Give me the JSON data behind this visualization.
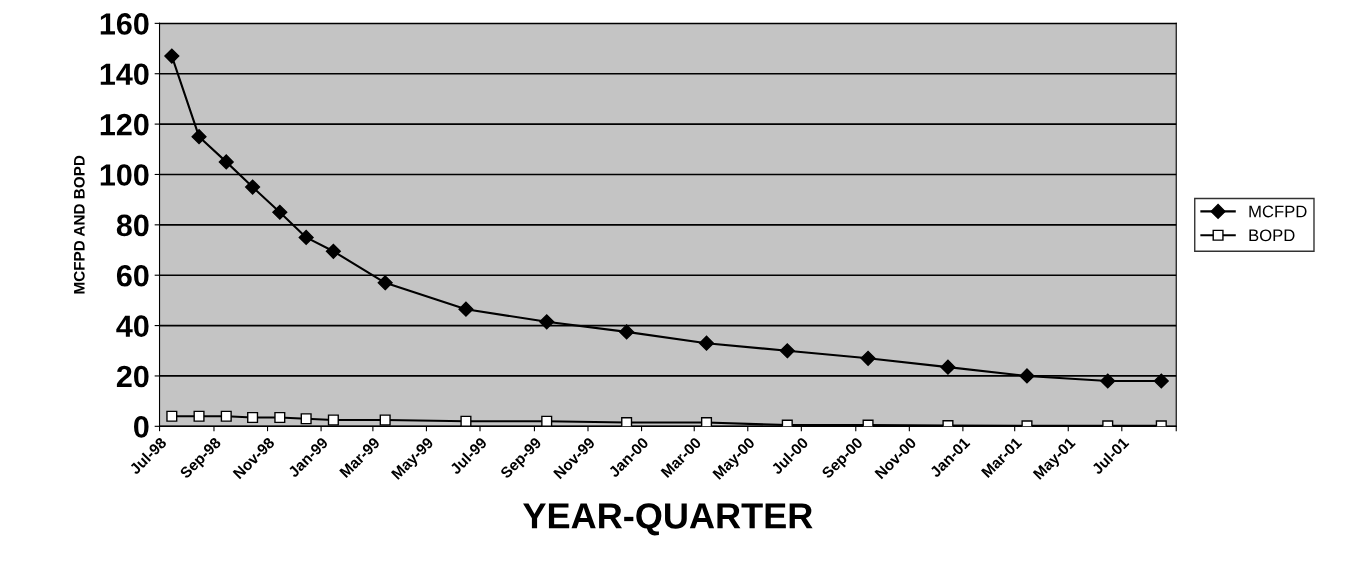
{
  "chart_data": {
    "type": "line",
    "xlabel": "YEAR-QUARTER",
    "ylabel": "MCFPD AND BOPD",
    "x": [
      "1998-07-15",
      "1998-08-15",
      "1998-09-15",
      "1998-10-15",
      "1998-11-15",
      "1998-12-15",
      "1999-01-15",
      "1999-03-15",
      "1999-06-15",
      "1999-09-15",
      "1999-12-15",
      "2000-03-15",
      "2000-06-15",
      "2000-09-15",
      "2000-12-15",
      "2001-03-15",
      "2001-06-15",
      "2001-08-15"
    ],
    "series": [
      {
        "name": "MCFPD",
        "color": "#000000",
        "marker": "diamond",
        "values": [
          147,
          115,
          105,
          95,
          85,
          75,
          69.5,
          57,
          46.5,
          41.5,
          37.5,
          33,
          30,
          27,
          23.5,
          20,
          18,
          18
        ]
      },
      {
        "name": "BOPD",
        "color": "#000000",
        "marker": "square",
        "values": [
          4,
          4,
          4,
          3.5,
          3.5,
          3,
          2.5,
          2.5,
          2,
          2,
          1.5,
          1.5,
          0.5,
          0.5,
          0.3,
          0.2,
          0.2,
          0.2
        ]
      }
    ],
    "xlim": [
      "1998-07-01",
      "2001-09-01"
    ],
    "xticks": [
      {
        "value": "1998-07-01",
        "label": "Jul-98"
      },
      {
        "value": "1998-09-01",
        "label": "Sep-98"
      },
      {
        "value": "1998-11-01",
        "label": "Nov-98"
      },
      {
        "value": "1999-01-01",
        "label": "Jan-99"
      },
      {
        "value": "1999-03-01",
        "label": "Mar-99"
      },
      {
        "value": "1999-05-01",
        "label": "May-99"
      },
      {
        "value": "1999-07-01",
        "label": "Jul-99"
      },
      {
        "value": "1999-09-01",
        "label": "Sep-99"
      },
      {
        "value": "1999-11-01",
        "label": "Nov-99"
      },
      {
        "value": "2000-01-01",
        "label": "Jan-00"
      },
      {
        "value": "2000-03-01",
        "label": "Mar-00"
      },
      {
        "value": "2000-05-01",
        "label": "May-00"
      },
      {
        "value": "2000-07-01",
        "label": "Jul-00"
      },
      {
        "value": "2000-09-01",
        "label": "Sep-00"
      },
      {
        "value": "2000-11-01",
        "label": "Nov-00"
      },
      {
        "value": "2001-01-01",
        "label": "Jan-01"
      },
      {
        "value": "2001-03-01",
        "label": "Mar-01"
      },
      {
        "value": "2001-05-01",
        "label": "May-01"
      },
      {
        "value": "2001-07-01",
        "label": "Jul-01"
      },
      {
        "value": "2001-09-01",
        "label": null
      }
    ],
    "ylim": [
      0,
      160
    ],
    "yticks": [
      0,
      20,
      40,
      60,
      80,
      100,
      120,
      140,
      160
    ],
    "grid": "y",
    "legend": "right",
    "line_style": "solid"
  }
}
